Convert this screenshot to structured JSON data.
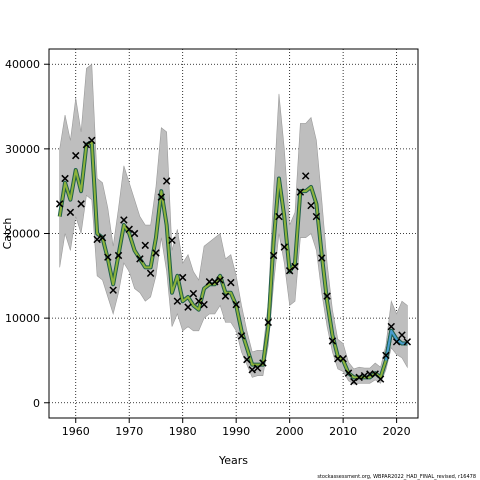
{
  "footer_note": "stockassessment.org, WBPAR2022_HAD_FINAL_revised, r16478",
  "chart_data": {
    "type": "line",
    "xlabel": "Years",
    "ylabel": "Catch",
    "xlim": [
      1955,
      2024
    ],
    "ylim": [
      -1800,
      41800
    ],
    "x_ticks": [
      1960,
      1970,
      1980,
      1990,
      2000,
      2010,
      2020
    ],
    "y_ticks": [
      0,
      10000,
      20000,
      30000,
      40000
    ],
    "grid": true,
    "legend": "none",
    "colors": {
      "band": "#bebebe",
      "band_edge": "#9a9a9a",
      "estimate": "#8db33b",
      "estimate_edge": "#1f5f4a",
      "forecast": "#4a9ed0",
      "grid": "#000000",
      "marker": "#000000"
    },
    "estimated": {
      "years": [
        1957,
        1958,
        1959,
        1960,
        1961,
        1962,
        1963,
        1964,
        1965,
        1966,
        1967,
        1968,
        1969,
        1970,
        1971,
        1972,
        1973,
        1974,
        1975,
        1976,
        1977,
        1978,
        1979,
        1980,
        1981,
        1982,
        1983,
        1984,
        1985,
        1986,
        1987,
        1988,
        1989,
        1990,
        1991,
        1992,
        1993,
        1994,
        1995,
        1996,
        1997,
        1998,
        1999,
        2000,
        2001,
        2002,
        2003,
        2004,
        2005,
        2006,
        2007,
        2008,
        2009,
        2010,
        2011,
        2012,
        2013,
        2014,
        2015,
        2016,
        2017,
        2018,
        2019,
        2020,
        2021,
        2022
      ],
      "values": [
        22000,
        26000,
        24000,
        27500,
        25000,
        30500,
        30800,
        20000,
        19500,
        17000,
        14000,
        17500,
        21000,
        20000,
        18000,
        17000,
        16000,
        16000,
        19500,
        25000,
        21000,
        13000,
        15000,
        12000,
        12500,
        11500,
        11000,
        13500,
        14000,
        14000,
        15000,
        13000,
        13000,
        11500,
        8500,
        6500,
        4500,
        4500,
        4500,
        9000,
        19000,
        26500,
        22000,
        15500,
        16500,
        25000,
        25000,
        25500,
        23500,
        17500,
        12000,
        8000,
        5500,
        5000,
        3500,
        3000,
        3000,
        3000,
        3000,
        3500,
        3000,
        5000,
        8500,
        7500,
        7000,
        7000
      ],
      "lower": [
        16000,
        20000,
        18000,
        22000,
        20000,
        24500,
        24000,
        15000,
        14500,
        12500,
        10500,
        13000,
        16500,
        15500,
        13500,
        13000,
        12000,
        12500,
        15000,
        19500,
        15500,
        9000,
        10500,
        8500,
        9000,
        8500,
        8500,
        10000,
        10500,
        10500,
        11500,
        9500,
        9500,
        8500,
        6000,
        4500,
        3000,
        3200,
        3200,
        6800,
        14000,
        20000,
        16500,
        11500,
        12000,
        19500,
        19500,
        20000,
        18000,
        13000,
        9000,
        6000,
        4000,
        3700,
        2600,
        2200,
        2300,
        2300,
        2300,
        2700,
        2300,
        3900,
        6500,
        5700,
        5300,
        4200
      ],
      "upper": [
        30000,
        34000,
        31000,
        36000,
        32000,
        39500,
        40000,
        26500,
        26000,
        23000,
        18500,
        23000,
        28000,
        26000,
        24000,
        22000,
        21000,
        21000,
        25500,
        32500,
        32000,
        18000,
        20500,
        16500,
        17500,
        15500,
        14500,
        18500,
        19000,
        19500,
        20000,
        17000,
        17500,
        15000,
        11500,
        8500,
        6000,
        6200,
        6200,
        11800,
        25000,
        36500,
        30000,
        21000,
        22500,
        33000,
        33000,
        33700,
        31000,
        24000,
        16500,
        11000,
        7500,
        7000,
        4800,
        4000,
        4200,
        4100,
        4100,
        4700,
        4200,
        6800,
        12000,
        10500,
        12000,
        11500
      ]
    },
    "forecast": {
      "years": [
        2018,
        2019,
        2020,
        2021,
        2022
      ],
      "values": [
        5000,
        8500,
        7500,
        7000,
        7000
      ]
    },
    "observed": {
      "years": [
        1957,
        1958,
        1959,
        1960,
        1961,
        1962,
        1963,
        1964,
        1965,
        1966,
        1967,
        1968,
        1969,
        1970,
        1971,
        1972,
        1973,
        1974,
        1975,
        1976,
        1977,
        1978,
        1979,
        1980,
        1981,
        1982,
        1983,
        1984,
        1985,
        1986,
        1987,
        1988,
        1989,
        1990,
        1991,
        1992,
        1993,
        1994,
        1995,
        1996,
        1997,
        1998,
        1999,
        2000,
        2001,
        2002,
        2003,
        2004,
        2005,
        2006,
        2007,
        2008,
        2009,
        2010,
        2011,
        2012,
        2013,
        2014,
        2015,
        2016,
        2017,
        2018,
        2019,
        2020,
        2021,
        2022
      ],
      "values": [
        23500,
        26500,
        22500,
        29200,
        23500,
        30500,
        31000,
        19300,
        19500,
        17200,
        13300,
        17400,
        21600,
        20500,
        20000,
        17000,
        18600,
        15300,
        17700,
        24300,
        26200,
        19200,
        12000,
        14800,
        11300,
        12900,
        12000,
        11600,
        14300,
        14300,
        14500,
        12600,
        14200,
        11600,
        7900,
        5100,
        3900,
        4100,
        4700,
        9500,
        17400,
        22000,
        18400,
        15600,
        16100,
        24900,
        26800,
        23300,
        22000,
        17100,
        12600,
        7300,
        5200,
        5200,
        3500,
        2500,
        3000,
        3200,
        3400,
        3400,
        2800,
        5600,
        9000,
        7200,
        8000,
        7200
      ]
    }
  }
}
